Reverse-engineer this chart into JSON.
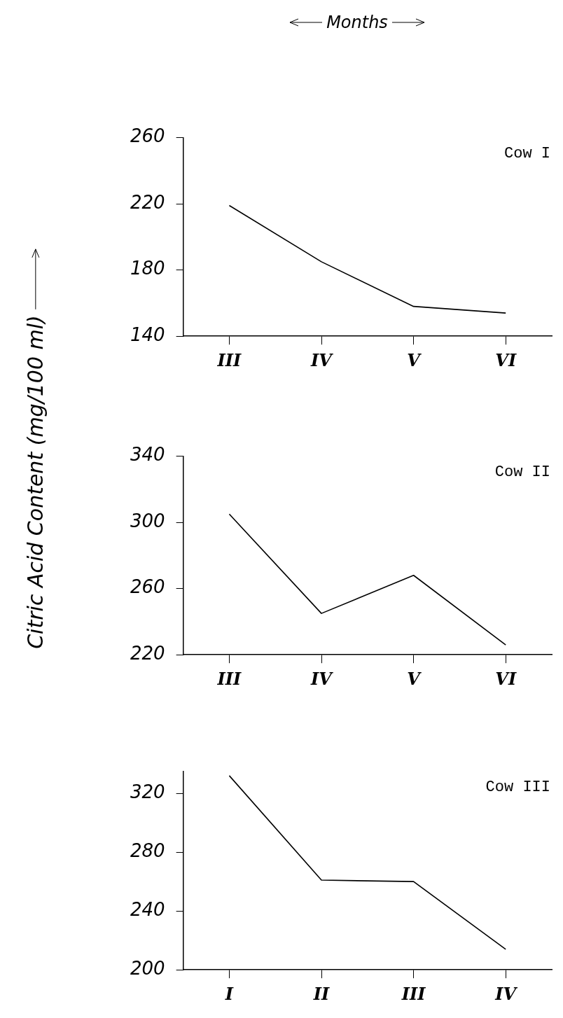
{
  "chart_data": [
    {
      "type": "line",
      "title": "Cow I",
      "xlabel": "Months",
      "ylabel": "Citric Acid Content (mg/100 ml)",
      "categories": [
        "III",
        "IV",
        "V",
        "VI"
      ],
      "series": [
        {
          "color": "#000000",
          "values": [
            219,
            185,
            158,
            154
          ]
        }
      ],
      "ylim": [
        140,
        260
      ],
      "yticks": [
        140,
        180,
        220,
        260
      ],
      "grid": false,
      "legend": false,
      "marker": "none",
      "line_style": "solid"
    },
    {
      "type": "line",
      "title": "Cow II",
      "categories": [
        "III",
        "IV",
        "V",
        "VI"
      ],
      "series": [
        {
          "color": "#000000",
          "values": [
            305,
            245,
            268,
            226
          ]
        }
      ],
      "ylim": [
        220,
        340
      ],
      "yticks": [
        220,
        260,
        300,
        340
      ],
      "grid": false,
      "legend": false,
      "marker": "none",
      "line_style": "solid"
    },
    {
      "type": "line",
      "title": "Cow III",
      "categories": [
        "I",
        "II",
        "III",
        "IV"
      ],
      "series": [
        {
          "color": "#000000",
          "values": [
            332,
            261,
            260,
            214
          ]
        }
      ],
      "ylim": [
        200,
        335
      ],
      "yticks": [
        200,
        240,
        280,
        320
      ],
      "grid": false,
      "legend": false,
      "marker": "none",
      "line_style": "solid"
    }
  ]
}
